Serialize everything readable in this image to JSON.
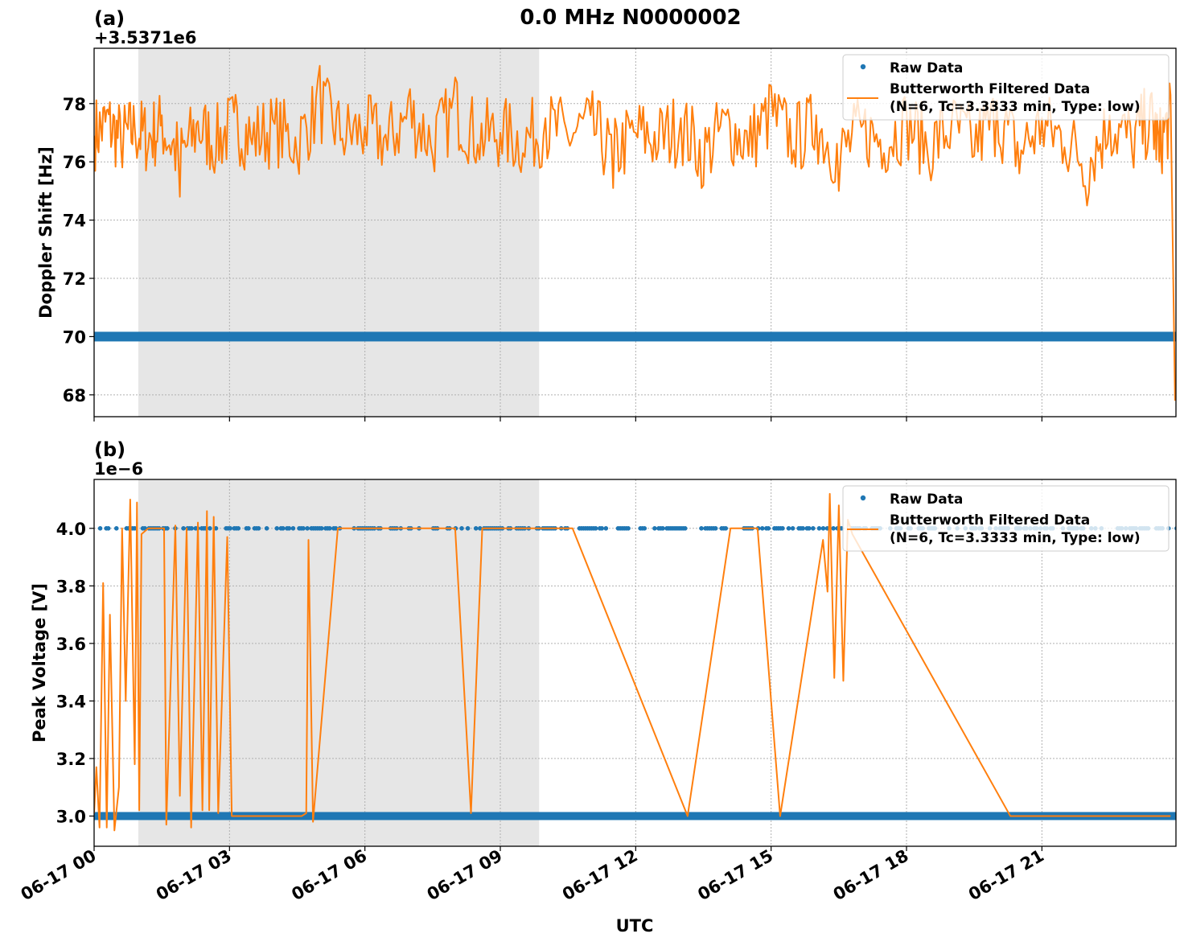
{
  "figure": {
    "title": "0.0 MHz N0000002",
    "xlabel": "UTC",
    "x_tick_labels": [
      "06-17 00",
      "06-17 03",
      "06-17 06",
      "06-17 09",
      "06-17 12",
      "06-17 15",
      "06-17 18",
      "06-17 21"
    ],
    "colors": {
      "raw": "#1f77b4",
      "filtered": "#ff7f0e",
      "shade": "#e6e6e6",
      "grid": "#b0b0b0"
    }
  },
  "legend": {
    "raw_label": "Raw Data",
    "filtered_label_line1": "Butterworth Filtered Data",
    "filtered_label_line2": "(N=6, Tc=3.3333 min, Type: low)"
  },
  "chart_data": [
    {
      "type": "line",
      "panel": "(a)",
      "title": "0.0 MHz N0000002",
      "xlabel": "UTC",
      "ylabel": "Doppler Shift [Hz]",
      "offset_label": "+3.5371e6",
      "y_tick_labels": [
        "68",
        "70",
        "72",
        "74",
        "76",
        "78"
      ],
      "ylim": [
        67.25,
        79.9
      ],
      "xlim_hours": [
        0,
        24
      ],
      "grid": true,
      "legend_position": "upper right",
      "shaded_region_hours": [
        0.98,
        9.86
      ],
      "series": [
        {
          "name": "Raw Data",
          "style": "dots",
          "description": "dense band of points at constant value across the whole day",
          "x_hours": [
            0,
            24
          ],
          "y": [
            70.0,
            70.0
          ]
        },
        {
          "name": "Butterworth Filtered Data (N=6, Tc=3.3333 min, Type: low)",
          "style": "line",
          "description": "noisy signal fluctuating ~75-79 Hz around mean ~77 Hz, sharp drop to ~67.8 at end",
          "x_hours": [
            0.0,
            0.3,
            0.6,
            0.9,
            1.2,
            1.5,
            1.9,
            2.3,
            2.7,
            3.1,
            3.5,
            4.0,
            4.5,
            5.0,
            5.5,
            6.0,
            6.5,
            7.0,
            7.5,
            8.0,
            8.5,
            9.0,
            9.5,
            10.0,
            10.5,
            11.0,
            11.5,
            12.0,
            12.5,
            13.0,
            13.5,
            14.0,
            14.5,
            15.0,
            15.5,
            16.0,
            16.5,
            17.0,
            17.5,
            18.0,
            18.5,
            19.0,
            19.5,
            20.0,
            20.5,
            21.0,
            21.5,
            22.0,
            22.5,
            23.0,
            23.4,
            23.6,
            23.85,
            23.95
          ],
          "y": [
            76.9,
            77.8,
            76.4,
            77.2,
            76.5,
            77.6,
            74.8,
            77.4,
            76.2,
            77.7,
            76.6,
            77.3,
            76.1,
            79.3,
            76.8,
            77.2,
            76.4,
            78.5,
            76.2,
            78.9,
            76.6,
            77.0,
            76.3,
            77.5,
            76.8,
            77.6,
            75.1,
            77.0,
            76.4,
            77.5,
            75.2,
            77.6,
            76.2,
            78.6,
            76.4,
            77.6,
            75.0,
            77.2,
            76.3,
            77.8,
            75.8,
            77.4,
            76.2,
            78.1,
            75.6,
            77.5,
            76.5,
            74.5,
            77.6,
            76.3,
            78.2,
            76.0,
            78.3,
            67.8
          ]
        }
      ]
    },
    {
      "type": "line",
      "panel": "(b)",
      "xlabel": "UTC",
      "ylabel": "Peak Voltage [V]",
      "offset_label": "1e−6",
      "y_tick_labels": [
        "3.0",
        "3.2",
        "3.4",
        "3.6",
        "3.8",
        "4.0"
      ],
      "ylim": [
        2.895,
        4.17
      ],
      "xlim_hours": [
        0,
        24
      ],
      "grid": true,
      "legend_position": "upper right",
      "shaded_region_hours": [
        0.98,
        9.86
      ],
      "series": [
        {
          "name": "Raw Data",
          "style": "dots",
          "description": "two discrete levels: dense band at 3.0 across the day; sparse/intermittent dots at 4.0",
          "levels": [
            3.0,
            4.0
          ]
        },
        {
          "name": "Butterworth Filtered Data (N=6, Tc=3.3333 min, Type: low)",
          "style": "line",
          "x_hours": [
            0.0,
            0.05,
            0.12,
            0.2,
            0.28,
            0.35,
            0.45,
            0.55,
            0.62,
            0.7,
            0.8,
            0.9,
            0.95,
            1.0,
            1.05,
            1.2,
            1.3,
            1.55,
            1.6,
            1.8,
            1.9,
            2.05,
            2.15,
            2.3,
            2.4,
            2.5,
            2.55,
            2.65,
            2.75,
            2.95,
            3.05,
            4.6,
            4.7,
            4.75,
            4.85,
            5.4,
            8.0,
            8.35,
            8.6,
            10.6,
            13.15,
            14.1,
            14.7,
            15.2,
            16.15,
            16.25,
            16.3,
            16.4,
            16.5,
            16.6,
            16.7,
            16.8,
            20.3,
            23.85
          ],
          "y": [
            3.01,
            3.17,
            2.96,
            3.81,
            2.96,
            3.7,
            2.95,
            3.1,
            4.0,
            3.4,
            4.1,
            3.18,
            4.09,
            3.02,
            3.98,
            4.0,
            4.0,
            4.0,
            2.97,
            4.01,
            3.07,
            4.0,
            2.96,
            4.02,
            3.02,
            4.06,
            3.02,
            4.04,
            3.01,
            3.97,
            3.0,
            3.0,
            3.01,
            3.96,
            2.98,
            4.0,
            4.0,
            3.01,
            4.0,
            4.0,
            3.0,
            4.0,
            4.0,
            3.0,
            3.96,
            3.78,
            4.12,
            3.48,
            4.08,
            3.47,
            4.03,
            3.98,
            3.0,
            3.0
          ]
        }
      ]
    }
  ]
}
